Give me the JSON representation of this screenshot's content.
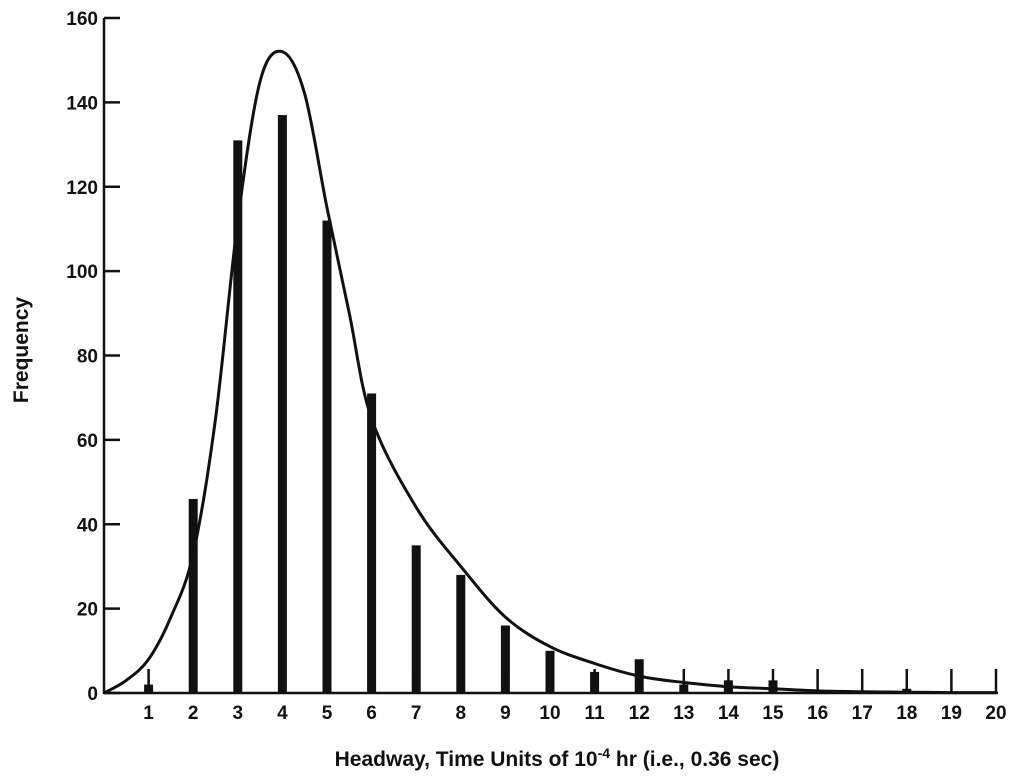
{
  "chart_data": {
    "type": "bar",
    "xlabel_prefix": "Headway, Time Units of 10",
    "xlabel_exponent": "-4",
    "xlabel_suffix": " hr (i.e., 0.36 sec)",
    "ylabel": "Frequency",
    "x_ticks": [
      "1",
      "2",
      "3",
      "4",
      "5",
      "6",
      "7",
      "8",
      "9",
      "10",
      "11",
      "12",
      "13",
      "14",
      "15",
      "16",
      "17",
      "18",
      "19",
      "20"
    ],
    "y_ticks": [
      "0",
      "20",
      "40",
      "60",
      "80",
      "100",
      "120",
      "140",
      "160"
    ],
    "xlim": [
      0,
      20
    ],
    "ylim": [
      0,
      160
    ],
    "grid": false,
    "bars": [
      {
        "x": 1,
        "value": 2
      },
      {
        "x": 2,
        "value": 46
      },
      {
        "x": 3,
        "value": 131
      },
      {
        "x": 4,
        "value": 137
      },
      {
        "x": 5,
        "value": 112
      },
      {
        "x": 6,
        "value": 71
      },
      {
        "x": 7,
        "value": 35
      },
      {
        "x": 8,
        "value": 28
      },
      {
        "x": 9,
        "value": 16
      },
      {
        "x": 10,
        "value": 10
      },
      {
        "x": 11,
        "value": 5
      },
      {
        "x": 12,
        "value": 8
      },
      {
        "x": 13,
        "value": 2
      },
      {
        "x": 14,
        "value": 3
      },
      {
        "x": 15,
        "value": 3
      },
      {
        "x": 16,
        "value": 0
      },
      {
        "x": 17,
        "value": 0
      },
      {
        "x": 18,
        "value": 1
      },
      {
        "x": 19,
        "value": 0
      },
      {
        "x": 20,
        "value": 0
      }
    ],
    "fitted_curve": {
      "x": [
        0,
        0.5,
        1,
        1.5,
        2,
        2.5,
        3,
        3.5,
        4,
        4.5,
        5,
        5.5,
        6,
        7,
        8,
        9,
        10,
        11,
        12,
        13,
        14,
        15,
        16,
        17,
        18,
        19,
        20
      ],
      "y": [
        0,
        3,
        8,
        18,
        33,
        65,
        112,
        145,
        152,
        142,
        115,
        90,
        65,
        44,
        30,
        18,
        11,
        7,
        4,
        2.5,
        1.5,
        1,
        0.5,
        0.3,
        0.2,
        0.1,
        0.1
      ]
    }
  }
}
